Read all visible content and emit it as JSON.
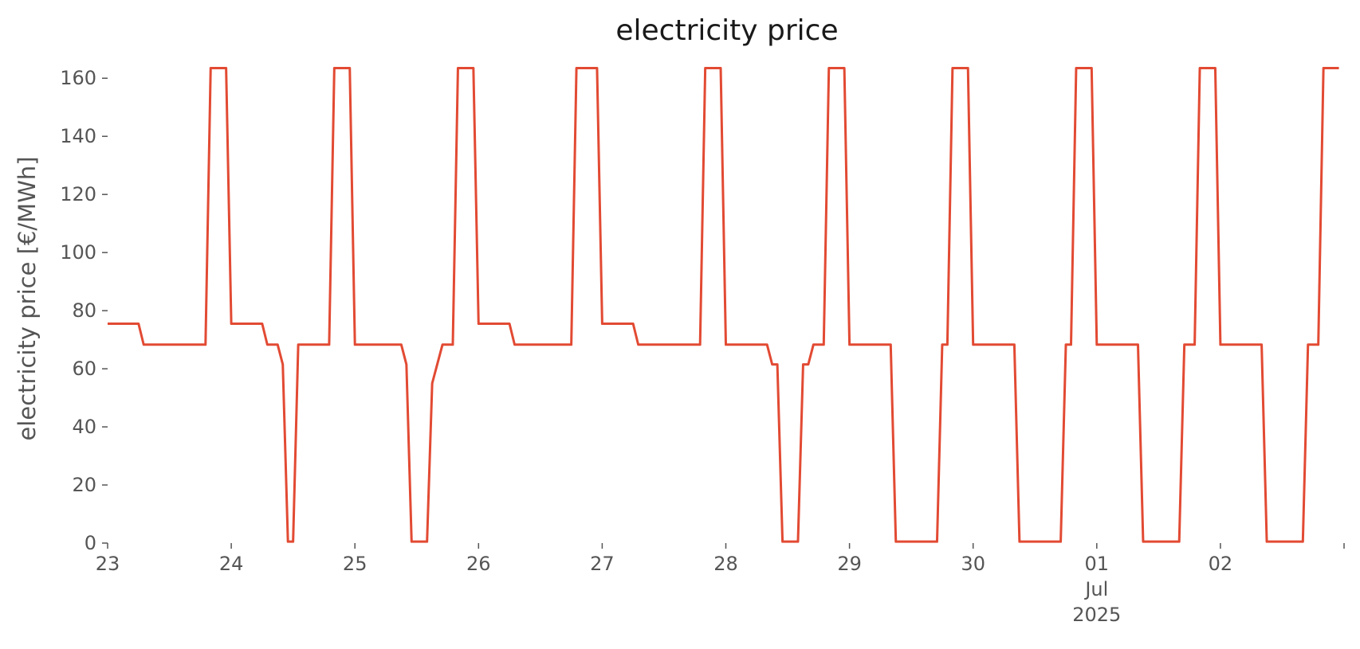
{
  "chart_data": {
    "type": "line",
    "title": "electricity price",
    "xlabel": "",
    "ylabel": "electricity price [€/MWh]",
    "ylim": [
      0,
      165
    ],
    "xlim": [
      "2025-06-23 00:00",
      "2025-07-03 00:00"
    ],
    "grid": false,
    "colors": {
      "line": "#e24a33"
    },
    "y_ticks": [
      0,
      20,
      40,
      60,
      80,
      100,
      120,
      140,
      160
    ],
    "x_ticks": [
      {
        "date": "2025-06-23",
        "lines": [
          "23"
        ]
      },
      {
        "date": "2025-06-24",
        "lines": [
          "24"
        ]
      },
      {
        "date": "2025-06-25",
        "lines": [
          "25"
        ]
      },
      {
        "date": "2025-06-26",
        "lines": [
          "26"
        ]
      },
      {
        "date": "2025-06-27",
        "lines": [
          "27"
        ]
      },
      {
        "date": "2025-06-28",
        "lines": [
          "28"
        ]
      },
      {
        "date": "2025-06-29",
        "lines": [
          "29"
        ]
      },
      {
        "date": "2025-06-30",
        "lines": [
          "30"
        ]
      },
      {
        "date": "2025-07-01",
        "lines": [
          "01",
          "Jul",
          "2025"
        ]
      },
      {
        "date": "2025-07-02",
        "lines": [
          "02"
        ]
      },
      {
        "date": "2025-07-03",
        "lines": []
      }
    ],
    "series": [
      {
        "points": [
          [
            "2025-06-23 00:00",
            75.5
          ],
          [
            "2025-06-23 06:00",
            75.5
          ],
          [
            "2025-06-23 07:00",
            68.3
          ],
          [
            "2025-06-23 19:00",
            68.3
          ],
          [
            "2025-06-23 20:00",
            163.5
          ],
          [
            "2025-06-23 23:00",
            163.5
          ],
          [
            "2025-06-24 00:00",
            75.5
          ],
          [
            "2025-06-24 06:00",
            75.5
          ],
          [
            "2025-06-24 07:00",
            68.3
          ],
          [
            "2025-06-24 09:00",
            68.3
          ],
          [
            "2025-06-24 10:00",
            61.5
          ],
          [
            "2025-06-24 11:00",
            0.5
          ],
          [
            "2025-06-24 12:00",
            0.5
          ],
          [
            "2025-06-24 13:00",
            68.3
          ],
          [
            "2025-06-24 19:00",
            68.3
          ],
          [
            "2025-06-24 20:00",
            163.5
          ],
          [
            "2025-06-24 23:00",
            163.5
          ],
          [
            "2025-06-25 00:00",
            68.3
          ],
          [
            "2025-06-25 09:00",
            68.3
          ],
          [
            "2025-06-25 10:00",
            61.5
          ],
          [
            "2025-06-25 11:00",
            0.5
          ],
          [
            "2025-06-25 14:00",
            0.5
          ],
          [
            "2025-06-25 15:00",
            55.0
          ],
          [
            "2025-06-25 17:00",
            68.3
          ],
          [
            "2025-06-25 19:00",
            68.3
          ],
          [
            "2025-06-25 20:00",
            163.5
          ],
          [
            "2025-06-25 23:00",
            163.5
          ],
          [
            "2025-06-26 00:00",
            75.5
          ],
          [
            "2025-06-26 06:00",
            75.5
          ],
          [
            "2025-06-26 07:00",
            68.3
          ],
          [
            "2025-06-26 18:00",
            68.3
          ],
          [
            "2025-06-26 19:00",
            163.5
          ],
          [
            "2025-06-26 23:00",
            163.5
          ],
          [
            "2025-06-27 00:00",
            75.5
          ],
          [
            "2025-06-27 06:00",
            75.5
          ],
          [
            "2025-06-27 07:00",
            68.3
          ],
          [
            "2025-06-27 19:00",
            68.3
          ],
          [
            "2025-06-27 20:00",
            163.5
          ],
          [
            "2025-06-27 23:00",
            163.5
          ],
          [
            "2025-06-28 00:00",
            68.3
          ],
          [
            "2025-06-28 08:00",
            68.3
          ],
          [
            "2025-06-28 09:00",
            61.5
          ],
          [
            "2025-06-28 10:00",
            61.5
          ],
          [
            "2025-06-28 11:00",
            0.5
          ],
          [
            "2025-06-28 14:00",
            0.5
          ],
          [
            "2025-06-28 15:00",
            61.5
          ],
          [
            "2025-06-28 16:00",
            61.5
          ],
          [
            "2025-06-28 17:00",
            68.3
          ],
          [
            "2025-06-28 19:00",
            68.3
          ],
          [
            "2025-06-28 20:00",
            163.5
          ],
          [
            "2025-06-28 23:00",
            163.5
          ],
          [
            "2025-06-29 00:00",
            68.3
          ],
          [
            "2025-06-29 08:00",
            68.3
          ],
          [
            "2025-06-29 09:00",
            0.5
          ],
          [
            "2025-06-29 17:00",
            0.5
          ],
          [
            "2025-06-29 18:00",
            68.3
          ],
          [
            "2025-06-29 19:00",
            68.3
          ],
          [
            "2025-06-29 20:00",
            163.5
          ],
          [
            "2025-06-29 23:00",
            163.5
          ],
          [
            "2025-06-30 00:00",
            68.3
          ],
          [
            "2025-06-30 08:00",
            68.3
          ],
          [
            "2025-06-30 09:00",
            0.5
          ],
          [
            "2025-06-30 17:00",
            0.5
          ],
          [
            "2025-06-30 18:00",
            68.3
          ],
          [
            "2025-06-30 19:00",
            68.3
          ],
          [
            "2025-06-30 20:00",
            163.5
          ],
          [
            "2025-06-30 23:00",
            163.5
          ],
          [
            "2025-07-01 00:00",
            68.3
          ],
          [
            "2025-07-01 08:00",
            68.3
          ],
          [
            "2025-07-01 09:00",
            0.5
          ],
          [
            "2025-07-01 16:00",
            0.5
          ],
          [
            "2025-07-01 17:00",
            68.3
          ],
          [
            "2025-07-01 19:00",
            68.3
          ],
          [
            "2025-07-01 20:00",
            163.5
          ],
          [
            "2025-07-01 23:00",
            163.5
          ],
          [
            "2025-07-02 00:00",
            68.3
          ],
          [
            "2025-07-02 08:00",
            68.3
          ],
          [
            "2025-07-02 09:00",
            0.5
          ],
          [
            "2025-07-02 16:00",
            0.5
          ],
          [
            "2025-07-02 17:00",
            68.3
          ],
          [
            "2025-07-02 19:00",
            68.3
          ],
          [
            "2025-07-02 20:00",
            163.5
          ],
          [
            "2025-07-02 23:00",
            163.5
          ]
        ]
      }
    ]
  }
}
